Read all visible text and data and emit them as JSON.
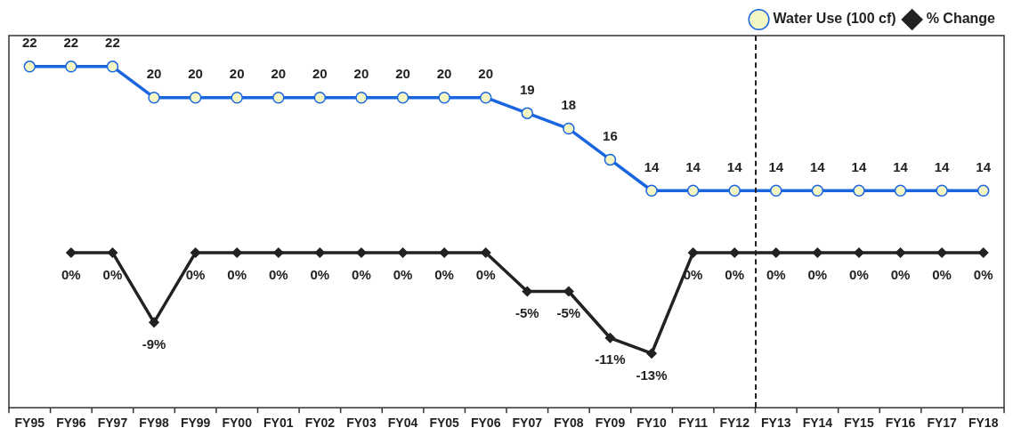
{
  "chart_data": {
    "type": "line",
    "categories": [
      "FY95",
      "FY96",
      "FY97",
      "FY98",
      "FY99",
      "FY00",
      "FY01",
      "FY02",
      "FY03",
      "FY04",
      "FY05",
      "FY06",
      "FY07",
      "FY08",
      "FY09",
      "FY10",
      "FY11",
      "FY12",
      "FY13",
      "FY14",
      "FY15",
      "FY16",
      "FY17",
      "FY18"
    ],
    "series": [
      {
        "name": "Water Use (100 cf)",
        "color": "#1a66e0",
        "marker": "circle",
        "values": [
          22,
          22,
          22,
          20,
          20,
          20,
          20,
          20,
          20,
          20,
          20,
          20,
          19,
          18,
          16,
          14,
          14,
          14,
          14,
          14,
          14,
          14,
          14,
          14
        ],
        "value_labels": [
          "22",
          "22",
          "22",
          "20",
          "20",
          "20",
          "20",
          "20",
          "20",
          "20",
          "20",
          "20",
          "19",
          "18",
          "16",
          "14",
          "14",
          "14",
          "14",
          "14",
          "14",
          "14",
          "14",
          "14"
        ]
      },
      {
        "name": "% Change",
        "color": "#222222",
        "marker": "diamond",
        "axis": "y2",
        "values": [
          null,
          0,
          0,
          -9,
          0,
          0,
          0,
          0,
          0,
          0,
          0,
          0,
          -5,
          -5,
          -11,
          -13,
          0,
          0,
          0,
          0,
          0,
          0,
          0,
          0
        ],
        "value_labels": [
          null,
          "0%",
          "0%",
          "-9%",
          "0%",
          "0%",
          "0%",
          "0%",
          "0%",
          "0%",
          "0%",
          "0%",
          "-5%",
          "-5%",
          "-11%",
          "-13%",
          "0%",
          "0%",
          "0%",
          "0%",
          "0%",
          "0%",
          "0%",
          "0%"
        ]
      }
    ],
    "ylim": [
      0,
      24
    ],
    "y2lim": [
      -20,
      28
    ],
    "tick_labels": "x",
    "grid": false,
    "legend": "top right"
  }
}
